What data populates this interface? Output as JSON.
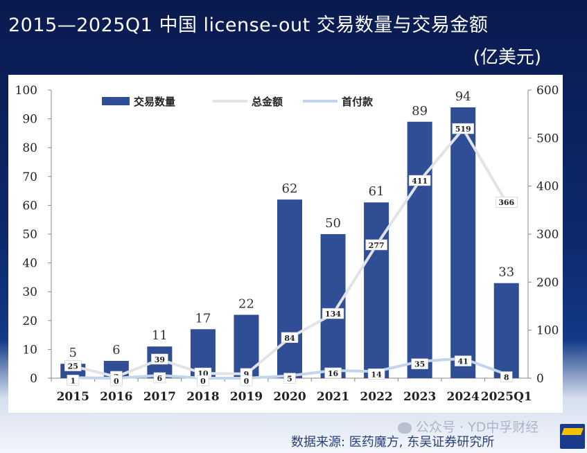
{
  "title": "2015—2025Q1 中国 license-out 交易数量与交易金额",
  "subtitle": "(亿美元)",
  "source": "数据来源: 医药魔方, 东吴证券研究所",
  "watermark": "公众号 · YD中孚财经",
  "colors": {
    "bar": "#2f4e95",
    "total_line": "#e1e3e8",
    "upfront_line": "#c3d5ea"
  },
  "chart_data": {
    "type": "bar",
    "title": "2015—2025Q1 中国 license-out 交易数量与交易金额",
    "categories": [
      "2015",
      "2016",
      "2017",
      "2018",
      "2019",
      "2020",
      "2021",
      "2022",
      "2023",
      "2024",
      "2025Q1"
    ],
    "series": [
      {
        "name": "交易数量",
        "type": "bar",
        "axis": "left",
        "values": [
          5,
          6,
          11,
          17,
          22,
          62,
          50,
          61,
          89,
          94,
          33
        ]
      },
      {
        "name": "总金额",
        "type": "line",
        "axis": "right",
        "values": [
          25,
          3,
          39,
          10,
          9,
          84,
          134,
          277,
          411,
          519,
          366
        ]
      },
      {
        "name": "首付款",
        "type": "line",
        "axis": "right",
        "values": [
          1,
          0,
          6,
          0,
          0,
          5,
          16,
          14,
          35,
          41,
          8
        ]
      }
    ],
    "ylim_left": [
      0,
      100
    ],
    "ylim_right": [
      0,
      600
    ],
    "yticks_left": [
      "0",
      "10",
      "20",
      "30",
      "40",
      "50",
      "60",
      "70",
      "80",
      "90",
      "100"
    ],
    "yticks_right": [
      "0",
      "100",
      "200",
      "300",
      "400",
      "500",
      "600"
    ],
    "legend": [
      "交易数量",
      "总金额",
      "首付款"
    ],
    "legend_position": "top-left"
  }
}
